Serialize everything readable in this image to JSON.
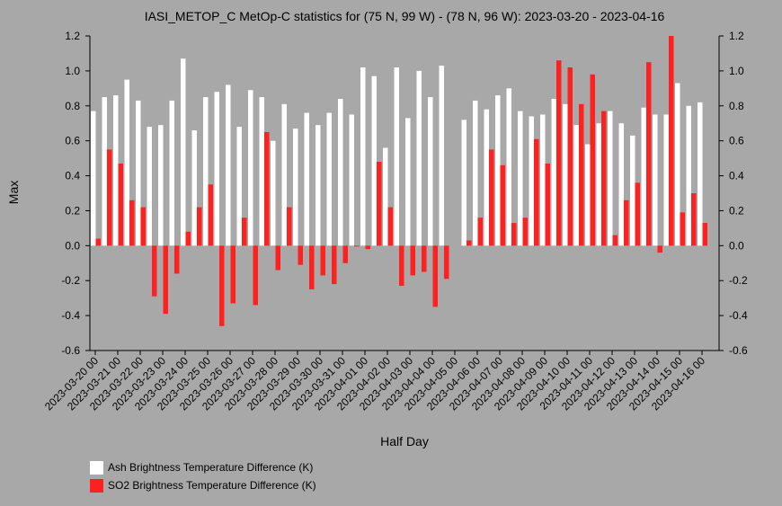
{
  "chart_data": {
    "type": "bar",
    "title": "IASI_METOP_C MetOp-C statistics for (75 N, 99 W) - (78 N, 96 W): 2023-03-20 - 2023-04-16",
    "xlabel": "Half Day",
    "ylabel": "Max",
    "ylim": [
      -0.6,
      1.2
    ],
    "yticks": [
      "1.2",
      "1.0",
      "0.8",
      "0.6",
      "0.4",
      "0.2",
      "0.0",
      "-0.2",
      "-0.4",
      "-0.6"
    ],
    "xtick_labels": [
      "2023-03-20 00",
      "2023-03-21 00",
      "2023-03-22 00",
      "2023-03-23 00",
      "2023-03-24 00",
      "2023-03-25 00",
      "2023-03-26 00",
      "2023-03-27 00",
      "2023-03-28 00",
      "2023-03-29 00",
      "2023-03-30 00",
      "2023-03-31 00",
      "2023-04-01 00",
      "2023-04-02 00",
      "2023-04-03 00",
      "2023-04-04 00",
      "2023-04-05 00",
      "2023-04-06 00",
      "2023-04-07 00",
      "2023-04-08 00",
      "2023-04-09 00",
      "2023-04-10 00",
      "2023-04-11 00",
      "2023-04-12 00",
      "2023-04-13 00",
      "2023-04-14 00",
      "2023-04-15 00",
      "2023-04-16 00"
    ],
    "series": [
      {
        "name": "Ash Brightness Temperature Difference (K)",
        "color": "#ffffff",
        "values": [
          0.77,
          0.85,
          0.86,
          0.95,
          0.83,
          0.68,
          0.69,
          0.83,
          1.07,
          0.66,
          0.85,
          0.88,
          0.92,
          0.68,
          0.89,
          0.85,
          0.6,
          0.81,
          0.67,
          0.76,
          0.69,
          0.76,
          0.84,
          0.75,
          1.02,
          0.97,
          0.56,
          1.02,
          0.73,
          1.0,
          0.85,
          1.03,
          null,
          0.72,
          0.83,
          0.78,
          0.86,
          0.9,
          0.77,
          0.74,
          0.75,
          0.84,
          0.81,
          0.69,
          0.58,
          0.7,
          0.77,
          0.7,
          0.63,
          0.79,
          0.75,
          0.75,
          0.93,
          0.8,
          0.82
        ]
      },
      {
        "name": "SO2 Brightness Temperature Difference (K)",
        "color": "#ff2020",
        "values": [
          0.04,
          0.55,
          0.47,
          0.26,
          0.22,
          -0.29,
          -0.39,
          -0.16,
          0.08,
          0.22,
          0.35,
          -0.46,
          -0.33,
          0.16,
          -0.34,
          0.65,
          -0.14,
          0.22,
          -0.11,
          -0.25,
          -0.17,
          -0.22,
          -0.1,
          -0.005,
          -0.02,
          0.48,
          0.22,
          -0.23,
          -0.17,
          -0.15,
          -0.35,
          -0.19,
          null,
          0.03,
          0.16,
          0.55,
          0.46,
          0.13,
          0.16,
          0.61,
          0.47,
          1.06,
          1.02,
          0.81,
          0.98,
          0.77,
          0.06,
          0.26,
          0.36,
          1.05,
          -0.04,
          1.2,
          0.19,
          0.3,
          0.13
        ]
      }
    ],
    "grid": false,
    "legend": "bottom-left"
  }
}
